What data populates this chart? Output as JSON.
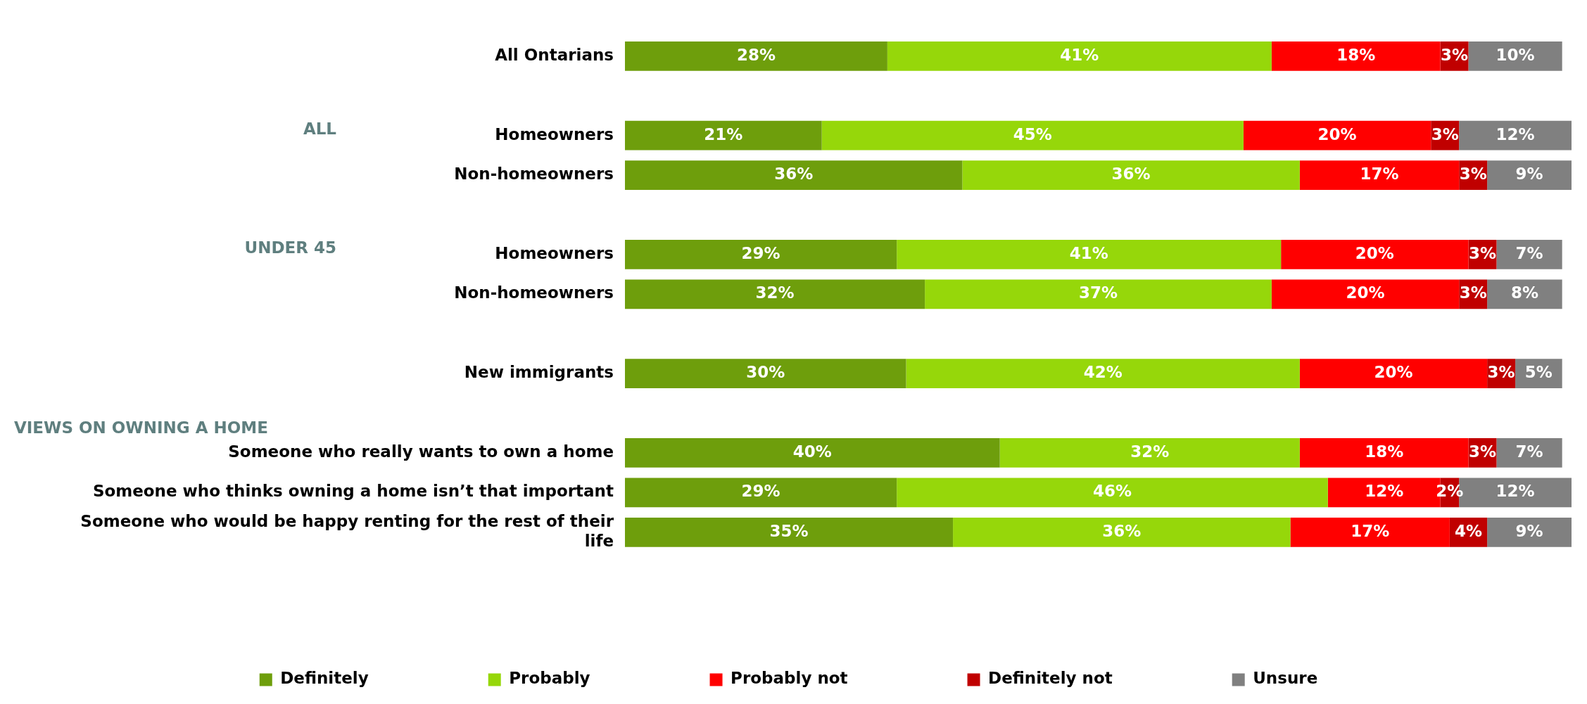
{
  "chart_data": {
    "type": "bar",
    "orientation": "horizontal",
    "stacked": true,
    "legend": "bottom",
    "grid": false,
    "tick_labels": "y",
    "categories": [
      "All Ontarians",
      null,
      "Homeowners",
      "Non-homeowners",
      null,
      "Homeowners",
      "Non-homeowners",
      null,
      "New immigrants",
      null,
      "Someone who really wants to own a home",
      "Someone who thinks owning a home isn’t that important",
      "Someone who would be happy renting for the rest of their life"
    ],
    "annotations": [
      "ALL",
      "UNDER 45",
      "VIEWS ON OWNING A HOME"
    ],
    "series": [
      {
        "name": "Definitely",
        "color": "#6e9e0c",
        "values": [
          28,
          null,
          21,
          36,
          null,
          29,
          32,
          null,
          30,
          null,
          40,
          29,
          35
        ],
        "value_labels": [
          "28%",
          null,
          "21%",
          "36%",
          null,
          "29%",
          "32%",
          null,
          "30%",
          null,
          "40%",
          "29%",
          "35%"
        ]
      },
      {
        "name": "Probably",
        "color": "#96d70a",
        "values": [
          41,
          null,
          45,
          36,
          null,
          41,
          37,
          null,
          42,
          null,
          32,
          46,
          36
        ],
        "value_labels": [
          "41%",
          null,
          "45%",
          "36%",
          null,
          "41%",
          "37%",
          null,
          "42%",
          null,
          "32%",
          "46%",
          "36%"
        ]
      },
      {
        "name": "Probably not",
        "color": "#ff0000",
        "values": [
          18,
          null,
          20,
          17,
          null,
          20,
          20,
          null,
          20,
          null,
          18,
          12,
          17
        ],
        "value_labels": [
          "18%",
          null,
          "20%",
          "17%",
          null,
          "20%",
          "20%",
          null,
          "20%",
          null,
          "18%",
          "12%",
          "17%"
        ]
      },
      {
        "name": "Definitely not",
        "color": "#c00000",
        "values": [
          3,
          null,
          3,
          3,
          null,
          3,
          3,
          null,
          3,
          null,
          3,
          2,
          4
        ],
        "value_labels": [
          "3%",
          null,
          "3%",
          "3%",
          null,
          "3%",
          "3%",
          null,
          "3%",
          null,
          "3%",
          "2%",
          "4%"
        ]
      },
      {
        "name": "Unsure",
        "color": "#808080",
        "values": [
          10,
          null,
          12,
          9,
          null,
          7,
          8,
          null,
          5,
          null,
          7,
          12,
          9
        ],
        "value_labels": [
          "10%",
          null,
          "12%",
          "9%",
          null,
          "7%",
          "8%",
          null,
          "5%",
          null,
          "7%",
          "12%",
          "9%"
        ]
      }
    ]
  }
}
